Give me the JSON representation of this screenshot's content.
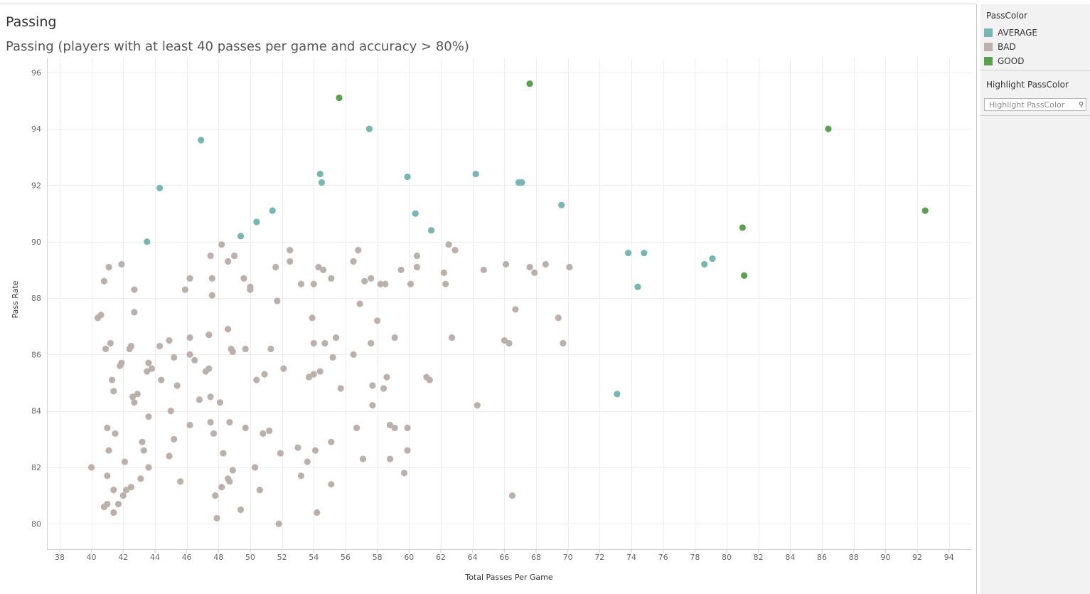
{
  "header": {
    "title": "Passing",
    "subtitle": "Passing (players with at least 40 passes per game and accuracy > 80%)"
  },
  "legend": {
    "title": "PassColor",
    "items": [
      {
        "label": "AVERAGE",
        "color": "#76b7b2"
      },
      {
        "label": "BAD",
        "color": "#bab0ac"
      },
      {
        "label": "GOOD",
        "color": "#59a14f"
      }
    ]
  },
  "highlight": {
    "title": "Highlight PassColor",
    "placeholder": "Highlight PassColor",
    "icon": "search-icon"
  },
  "chart_data": {
    "type": "scatter",
    "title": "Passing",
    "subtitle": "Passing (players with at least 40 passes per game and accuracy > 80%)",
    "xlabel": "Total Passes Per Game",
    "ylabel": "Pass Rate",
    "xlim": [
      37.2,
      95.4
    ],
    "ylim": [
      79.1,
      96.5
    ],
    "xticks": [
      38,
      40,
      42,
      44,
      46,
      48,
      50,
      52,
      54,
      56,
      58,
      60,
      62,
      64,
      66,
      68,
      70,
      72,
      74,
      76,
      78,
      80,
      82,
      84,
      86,
      88,
      90,
      92,
      94
    ],
    "yticks": [
      80,
      82,
      84,
      86,
      88,
      90,
      92,
      94,
      96
    ],
    "grid": true,
    "legend_position": "right",
    "series": [
      {
        "name": "AVERAGE",
        "color": "#76b7b2",
        "points": [
          [
            43.5,
            90.0
          ],
          [
            44.3,
            91.9
          ],
          [
            46.9,
            93.6
          ],
          [
            49.4,
            90.2
          ],
          [
            50.4,
            90.7
          ],
          [
            51.4,
            91.1
          ],
          [
            54.4,
            92.4
          ],
          [
            54.5,
            92.1
          ],
          [
            57.5,
            94.0
          ],
          [
            59.9,
            92.3
          ],
          [
            60.4,
            91.0
          ],
          [
            61.4,
            90.4
          ],
          [
            64.2,
            92.4
          ],
          [
            66.9,
            92.1
          ],
          [
            67.1,
            92.1
          ],
          [
            69.6,
            91.3
          ],
          [
            73.1,
            84.6
          ],
          [
            73.8,
            89.6
          ],
          [
            74.8,
            89.6
          ],
          [
            74.4,
            88.4
          ],
          [
            78.6,
            89.2
          ],
          [
            79.1,
            89.4
          ]
        ]
      },
      {
        "name": "BAD",
        "color": "#bab0ac",
        "points": [
          [
            40.0,
            82.0
          ],
          [
            40.4,
            87.3
          ],
          [
            40.6,
            87.4
          ],
          [
            40.8,
            88.6
          ],
          [
            40.8,
            80.6
          ],
          [
            40.9,
            86.2
          ],
          [
            41.0,
            80.7
          ],
          [
            41.0,
            81.7
          ],
          [
            41.0,
            83.4
          ],
          [
            41.1,
            89.1
          ],
          [
            41.1,
            82.6
          ],
          [
            41.2,
            86.4
          ],
          [
            41.3,
            85.1
          ],
          [
            41.4,
            84.7
          ],
          [
            41.4,
            81.2
          ],
          [
            41.4,
            80.4
          ],
          [
            41.5,
            83.2
          ],
          [
            41.7,
            80.7
          ],
          [
            41.8,
            85.6
          ],
          [
            41.9,
            89.2
          ],
          [
            41.9,
            85.7
          ],
          [
            42.0,
            81.0
          ],
          [
            42.1,
            82.2
          ],
          [
            42.2,
            81.2
          ],
          [
            42.4,
            86.2
          ],
          [
            42.5,
            86.3
          ],
          [
            42.5,
            81.3
          ],
          [
            42.6,
            84.5
          ],
          [
            42.7,
            84.3
          ],
          [
            42.7,
            88.3
          ],
          [
            42.7,
            87.5
          ],
          [
            42.9,
            84.6
          ],
          [
            43.1,
            81.6
          ],
          [
            43.2,
            82.9
          ],
          [
            43.3,
            82.6
          ],
          [
            43.5,
            85.4
          ],
          [
            43.6,
            85.7
          ],
          [
            43.6,
            83.8
          ],
          [
            43.6,
            82.0
          ],
          [
            43.8,
            85.5
          ],
          [
            44.3,
            86.3
          ],
          [
            44.4,
            85.1
          ],
          [
            44.9,
            86.5
          ],
          [
            44.9,
            82.4
          ],
          [
            45.0,
            84.0
          ],
          [
            45.2,
            83.0
          ],
          [
            45.2,
            85.9
          ],
          [
            45.4,
            84.9
          ],
          [
            45.6,
            81.5
          ],
          [
            45.9,
            88.3
          ],
          [
            46.2,
            88.7
          ],
          [
            46.2,
            86.6
          ],
          [
            46.2,
            86.0
          ],
          [
            46.2,
            83.5
          ],
          [
            46.5,
            85.8
          ],
          [
            46.8,
            84.4
          ],
          [
            47.2,
            85.4
          ],
          [
            47.4,
            85.5
          ],
          [
            47.4,
            86.7
          ],
          [
            47.5,
            89.5
          ],
          [
            47.5,
            84.5
          ],
          [
            47.5,
            83.6
          ],
          [
            47.6,
            88.7
          ],
          [
            47.6,
            88.1
          ],
          [
            47.7,
            83.2
          ],
          [
            47.8,
            81.0
          ],
          [
            47.9,
            80.2
          ],
          [
            48.1,
            84.3
          ],
          [
            48.2,
            89.9
          ],
          [
            48.2,
            81.3
          ],
          [
            48.3,
            82.5
          ],
          [
            48.6,
            86.9
          ],
          [
            48.6,
            89.3
          ],
          [
            48.6,
            81.6
          ],
          [
            48.7,
            83.6
          ],
          [
            48.8,
            86.2
          ],
          [
            48.9,
            86.1
          ],
          [
            48.9,
            81.9
          ],
          [
            49.0,
            89.5
          ],
          [
            48.7,
            81.5
          ],
          [
            49.4,
            80.5
          ],
          [
            49.6,
            88.7
          ],
          [
            49.7,
            86.2
          ],
          [
            49.7,
            83.4
          ],
          [
            50.0,
            88.4
          ],
          [
            50.0,
            88.3
          ],
          [
            50.3,
            82.0
          ],
          [
            50.4,
            85.1
          ],
          [
            50.6,
            81.2
          ],
          [
            50.8,
            83.2
          ],
          [
            50.9,
            85.3
          ],
          [
            51.2,
            83.3
          ],
          [
            51.3,
            86.2
          ],
          [
            51.6,
            89.1
          ],
          [
            51.7,
            87.9
          ],
          [
            51.8,
            80.0
          ],
          [
            51.9,
            82.5
          ],
          [
            52.1,
            85.5
          ],
          [
            52.5,
            89.7
          ],
          [
            52.5,
            89.3
          ],
          [
            53.0,
            82.7
          ],
          [
            53.2,
            88.5
          ],
          [
            53.2,
            81.7
          ],
          [
            53.6,
            82.2
          ],
          [
            53.7,
            85.2
          ],
          [
            53.9,
            87.3
          ],
          [
            54.0,
            86.4
          ],
          [
            54.0,
            88.5
          ],
          [
            54.0,
            85.3
          ],
          [
            54.1,
            82.6
          ],
          [
            54.2,
            80.4
          ],
          [
            54.3,
            89.1
          ],
          [
            54.4,
            85.4
          ],
          [
            54.6,
            89.0
          ],
          [
            54.7,
            86.4
          ],
          [
            55.1,
            88.7
          ],
          [
            55.1,
            82.9
          ],
          [
            55.1,
            81.4
          ],
          [
            55.2,
            85.9
          ],
          [
            55.4,
            86.6
          ],
          [
            55.7,
            84.8
          ],
          [
            56.5,
            89.3
          ],
          [
            56.5,
            86.0
          ],
          [
            56.7,
            83.4
          ],
          [
            56.8,
            89.7
          ],
          [
            56.9,
            87.8
          ],
          [
            57.1,
            82.3
          ],
          [
            57.2,
            88.6
          ],
          [
            57.6,
            88.7
          ],
          [
            57.6,
            86.4
          ],
          [
            57.7,
            84.9
          ],
          [
            57.7,
            84.2
          ],
          [
            58.0,
            87.2
          ],
          [
            58.2,
            88.5
          ],
          [
            58.4,
            84.8
          ],
          [
            58.5,
            88.5
          ],
          [
            58.6,
            85.2
          ],
          [
            58.8,
            83.5
          ],
          [
            58.8,
            82.3
          ],
          [
            59.1,
            86.6
          ],
          [
            59.1,
            83.4
          ],
          [
            59.5,
            89.0
          ],
          [
            59.7,
            81.8
          ],
          [
            59.9,
            83.4
          ],
          [
            59.9,
            82.6
          ],
          [
            60.1,
            88.5
          ],
          [
            60.5,
            89.5
          ],
          [
            60.5,
            89.1
          ],
          [
            61.1,
            85.2
          ],
          [
            61.3,
            85.1
          ],
          [
            62.2,
            88.9
          ],
          [
            62.3,
            88.5
          ],
          [
            62.5,
            89.9
          ],
          [
            62.7,
            86.6
          ],
          [
            62.9,
            89.7
          ],
          [
            64.3,
            84.2
          ],
          [
            64.7,
            89.0
          ],
          [
            66.0,
            86.5
          ],
          [
            66.1,
            89.2
          ],
          [
            66.3,
            86.4
          ],
          [
            66.5,
            81.0
          ],
          [
            66.7,
            87.6
          ],
          [
            67.6,
            89.1
          ],
          [
            67.9,
            88.9
          ],
          [
            68.6,
            89.2
          ],
          [
            69.4,
            87.3
          ],
          [
            69.7,
            86.4
          ],
          [
            70.1,
            89.1
          ]
        ]
      },
      {
        "name": "GOOD",
        "color": "#59a14f",
        "points": [
          [
            55.6,
            95.1
          ],
          [
            67.6,
            95.6
          ],
          [
            81.0,
            90.5
          ],
          [
            81.1,
            88.8
          ],
          [
            86.4,
            94.0
          ],
          [
            92.5,
            91.1
          ]
        ]
      }
    ]
  }
}
